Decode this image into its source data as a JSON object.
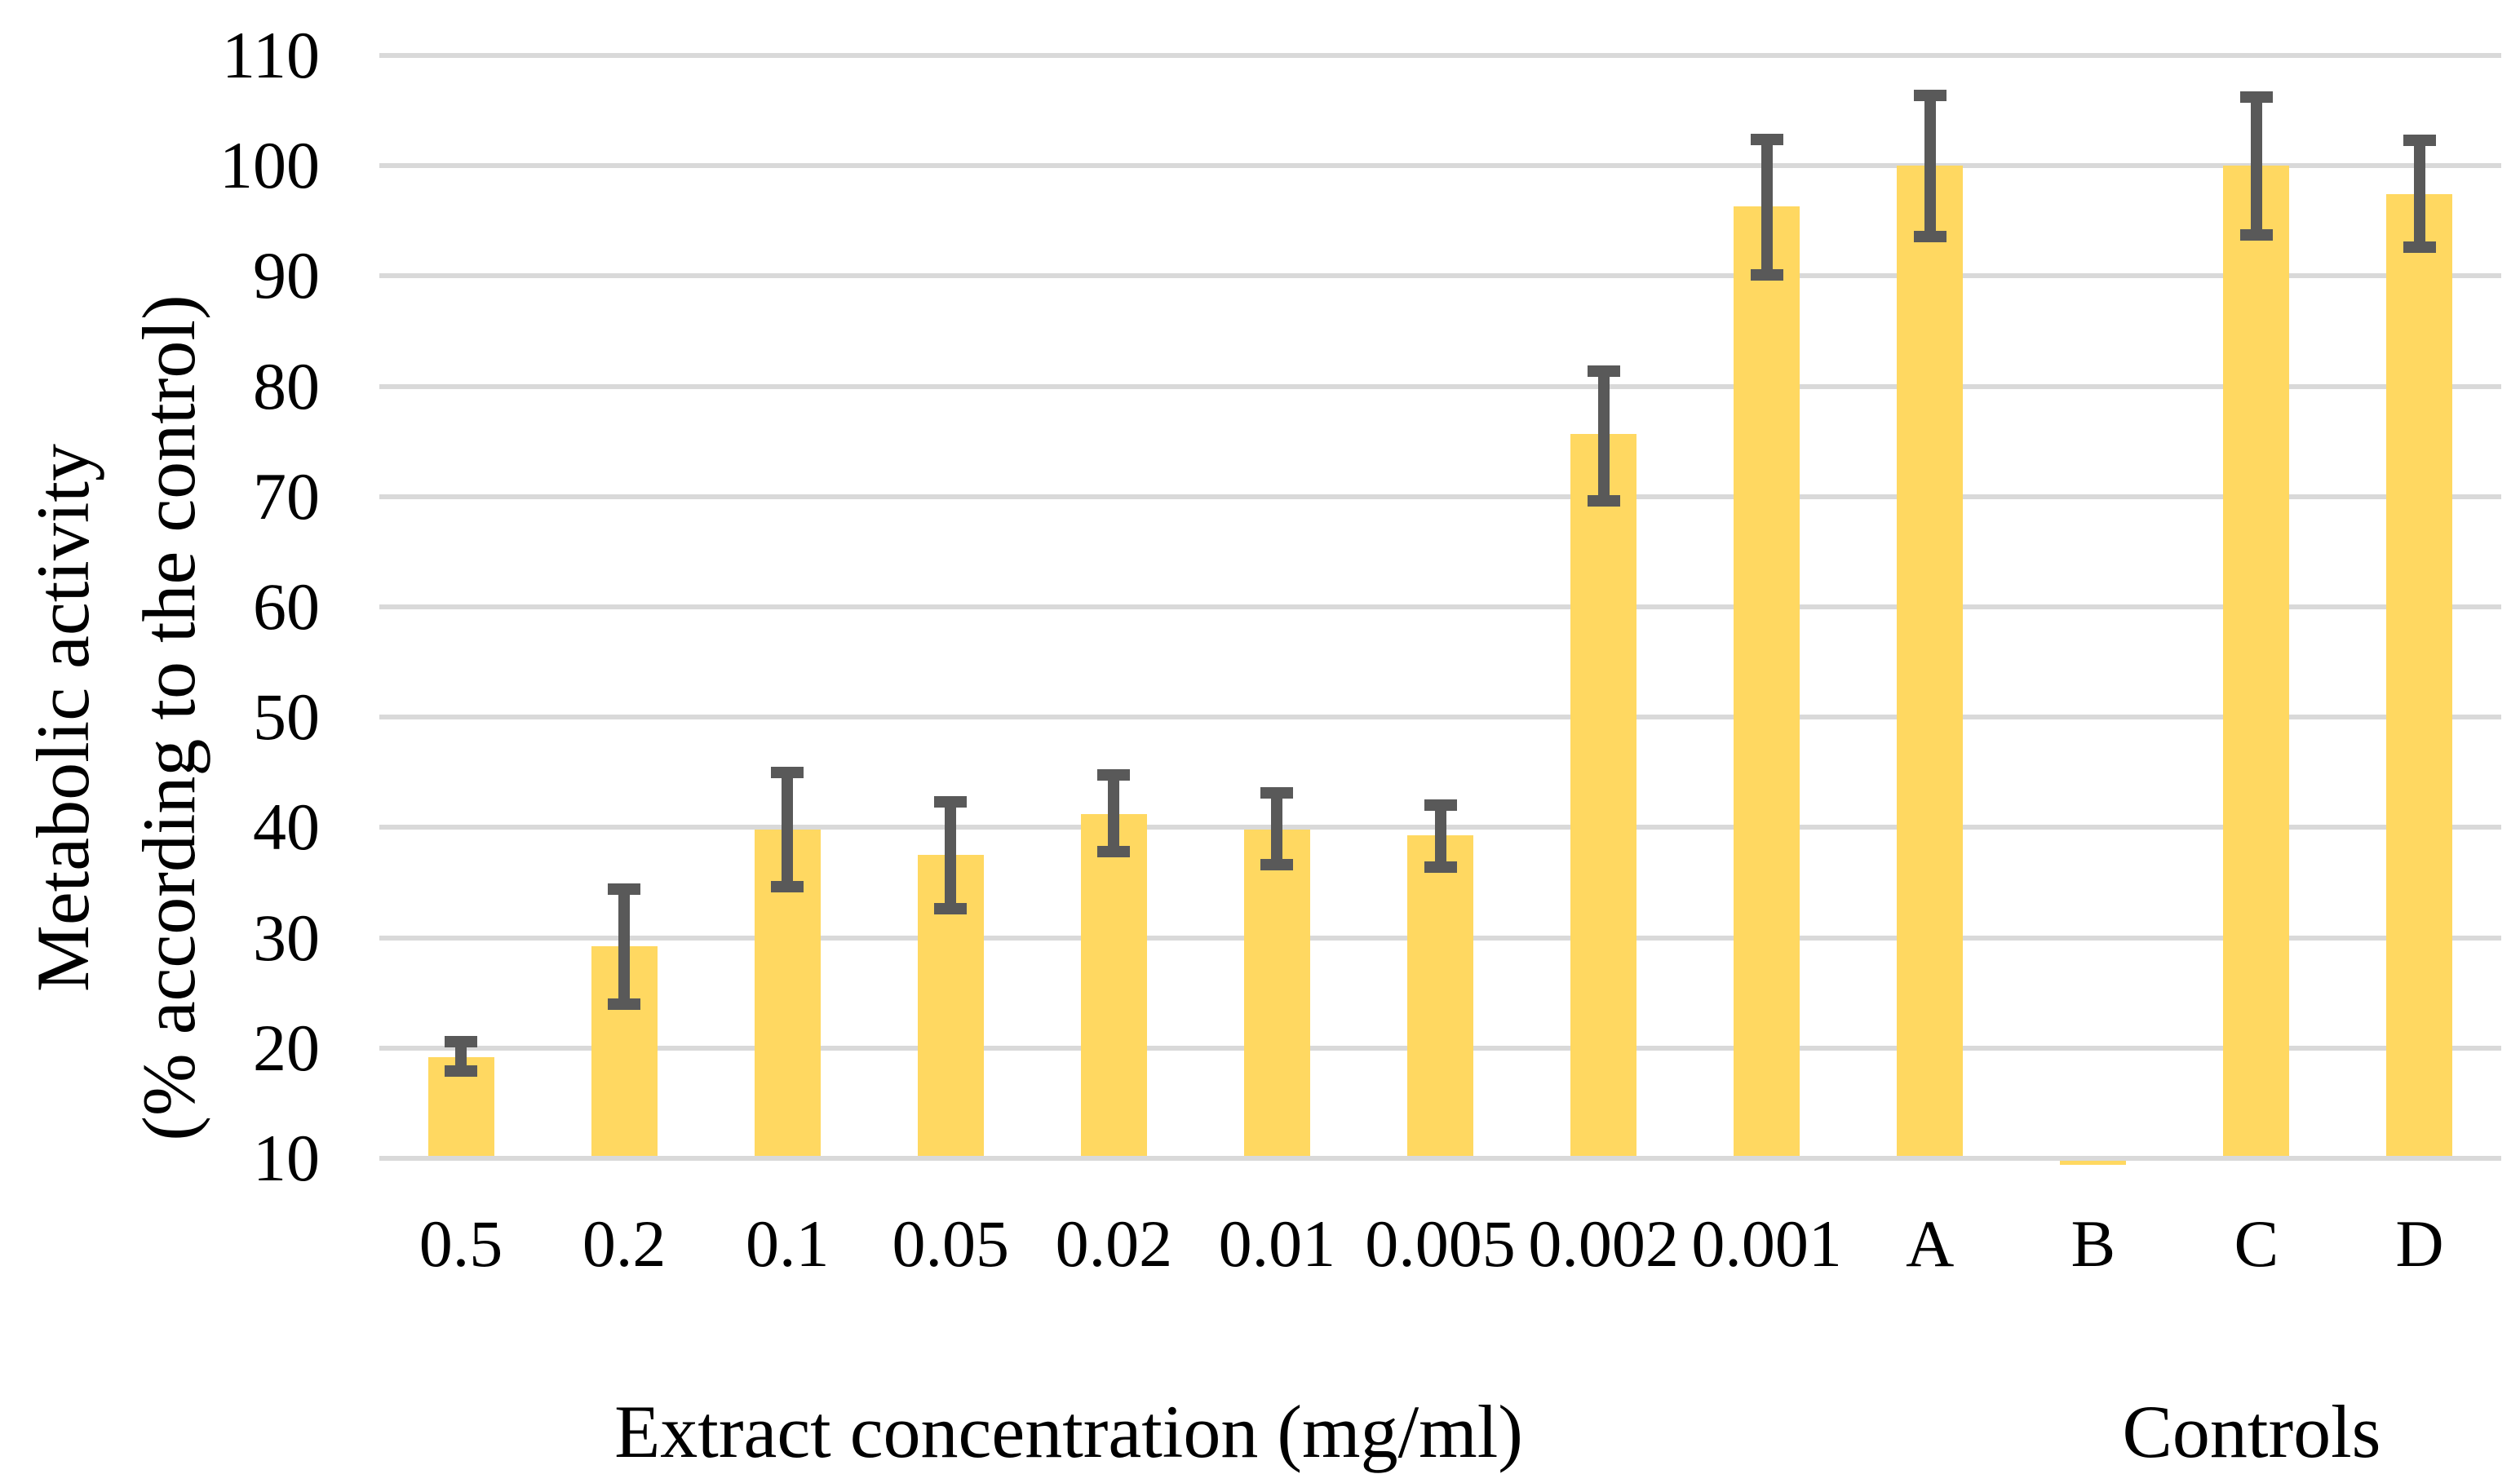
{
  "figure": {
    "background_color": "#FFFFFF",
    "text_color": "#000000"
  },
  "y_axis": {
    "title_line1": "Metabolic activity",
    "title_line2": "(% according to the control)",
    "tick_labels": [
      "110",
      "100",
      "90",
      "80",
      "70",
      "60",
      "50",
      "40",
      "30",
      "20",
      "10"
    ],
    "min": 10,
    "max": 110,
    "step": 10
  },
  "x_axis": {
    "group_titles": [
      {
        "label": "Extract concentration (mg/ml)"
      },
      {
        "label": "Controls"
      }
    ]
  },
  "chart_data": {
    "type": "bar",
    "title": "",
    "ylabel": "Metabolic activity (% according to the control)",
    "xlabel": "Extract concentration (mg/ml) | Controls",
    "categories": [
      "0.5",
      "0.2",
      "0.1",
      "0.05",
      "0.02",
      "0.01",
      "0.005",
      "0.002",
      "0.001",
      "A",
      "B",
      "C",
      "D"
    ],
    "values": [
      19.2,
      29.2,
      39.8,
      37.5,
      41.2,
      39.8,
      39.3,
      75.7,
      96.3,
      100.0,
      9.6,
      100.0,
      97.4
    ],
    "error_low": [
      17.9,
      24.0,
      34.6,
      32.6,
      37.8,
      36.6,
      36.4,
      69.6,
      90.1,
      93.6,
      null,
      93.7,
      92.6
    ],
    "error_high": [
      20.6,
      34.4,
      45.0,
      42.3,
      44.8,
      43.1,
      42.0,
      81.4,
      102.4,
      106.4,
      null,
      106.2,
      102.3
    ],
    "ylim": [
      10,
      110
    ],
    "grid": true,
    "legend": false,
    "bar_color": "#FFD861",
    "error_bar_color": "#595959",
    "gridline_color": "#D9D9D9"
  }
}
